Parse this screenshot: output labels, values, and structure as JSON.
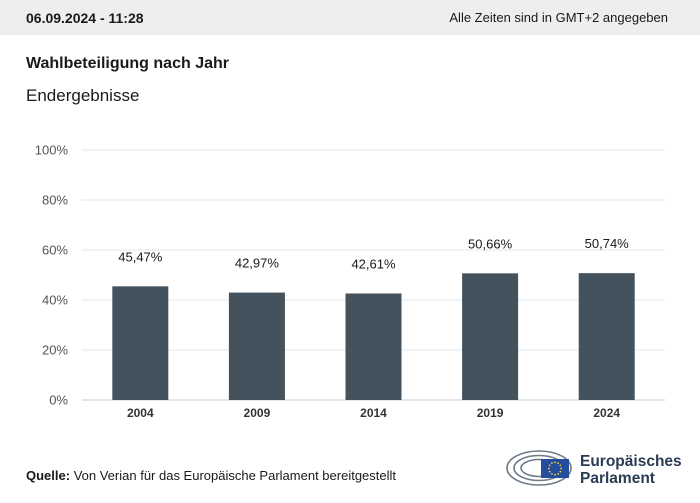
{
  "header": {
    "datetime": "06.09.2024 - 11:28",
    "timezone_note": "Alle Zeiten sind in GMT+2 angegeben"
  },
  "title": "Wahlbeteiligung nach Jahr",
  "subtitle": "Endergebnisse",
  "footer": {
    "source_label": "Quelle:",
    "source_text": "Von Verian für das Europäische Parlament bereitgestellt",
    "logo_line1": "Europäisches",
    "logo_line2": "Parlament"
  },
  "colors": {
    "bar": "#43525d",
    "grid": "#e3e6ea",
    "logo_blue": "#2a3b53",
    "eu_flag": "#264c9c",
    "eu_star": "#f3d22f"
  },
  "chart_data": {
    "type": "bar",
    "categories": [
      "2004",
      "2009",
      "2014",
      "2019",
      "2024"
    ],
    "values": [
      45.47,
      42.97,
      42.61,
      50.66,
      50.74
    ],
    "value_labels": [
      "45,47%",
      "42,97%",
      "42,61%",
      "50,66%",
      "50,74%"
    ],
    "ylim": [
      0,
      100
    ],
    "yticks": [
      0,
      20,
      40,
      60,
      80,
      100
    ],
    "ytick_labels": [
      "0%",
      "20%",
      "40%",
      "60%",
      "80%",
      "100%"
    ],
    "grid": true
  }
}
